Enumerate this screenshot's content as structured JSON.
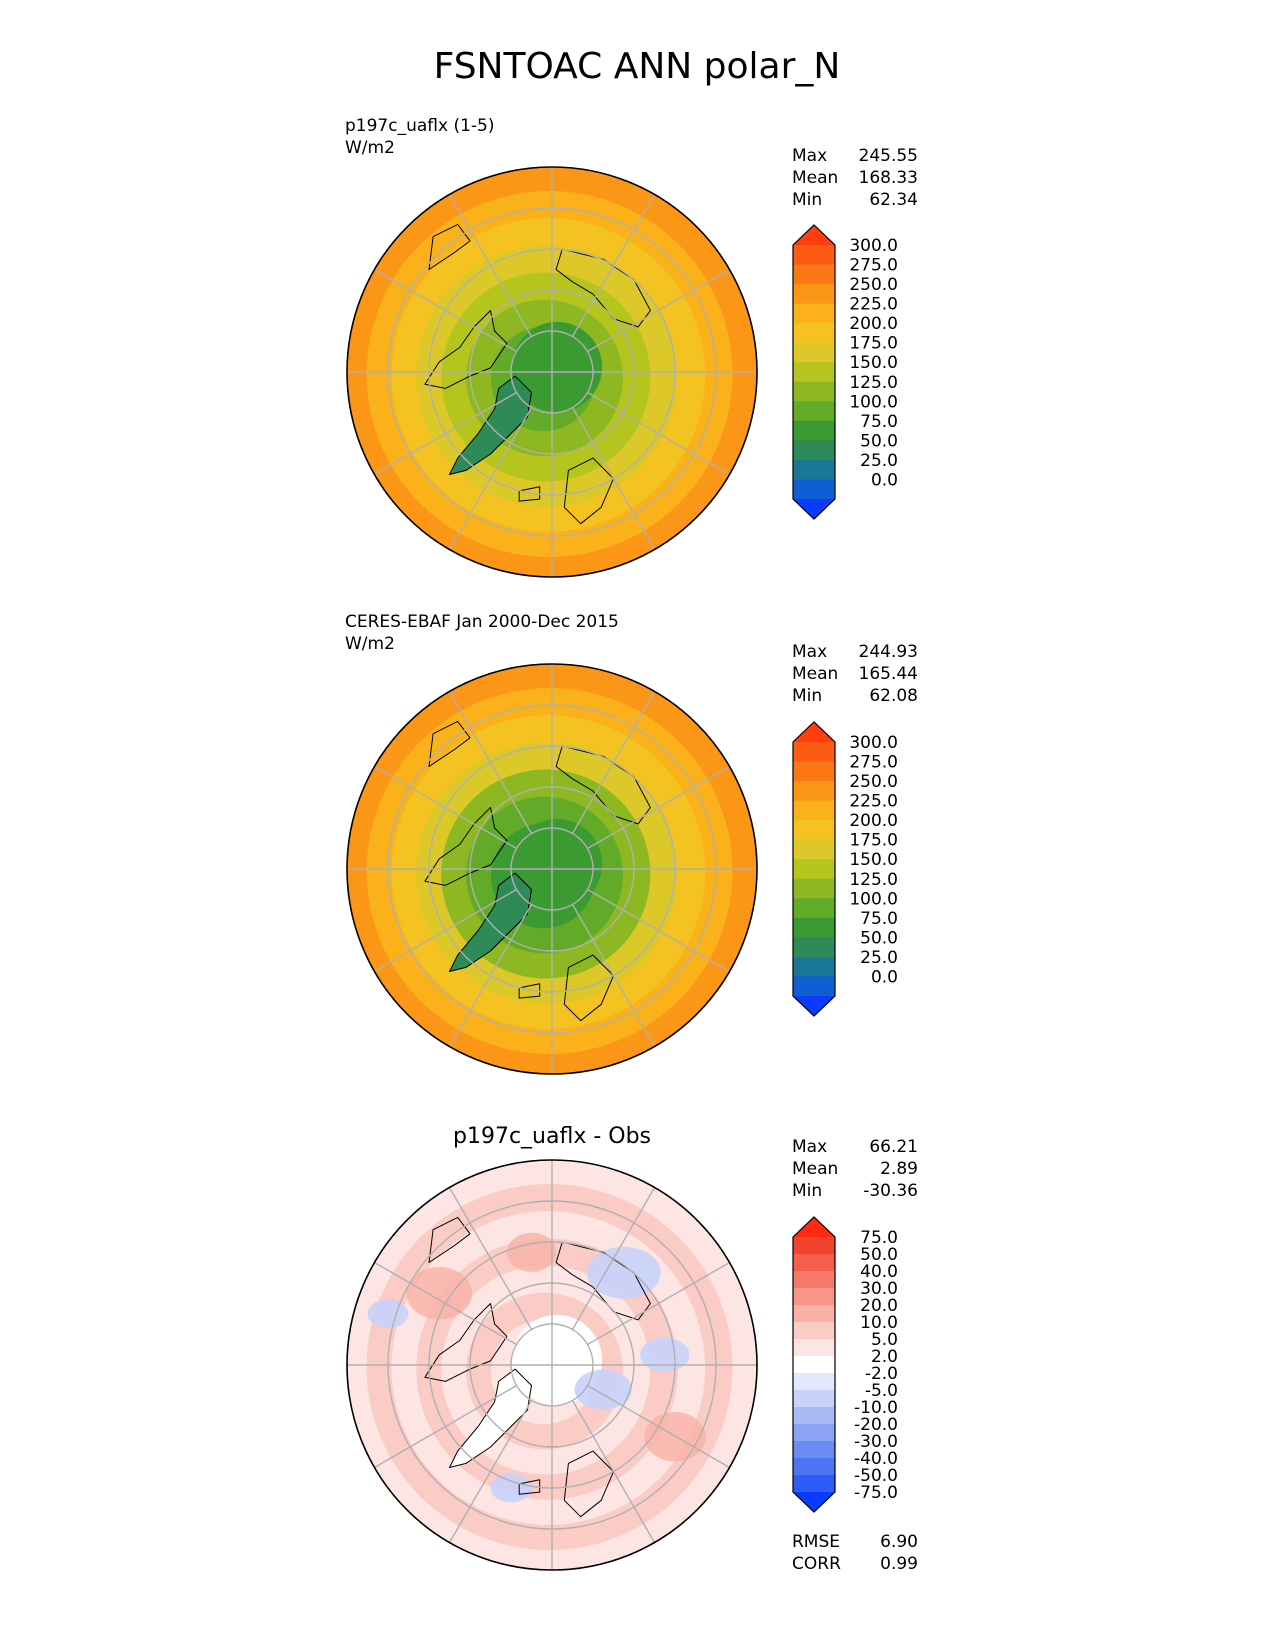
{
  "title": "FSNTOAC ANN polar_N",
  "panels": [
    {
      "label_lines": [
        "p197c_uaflx (1-5)",
        "W/m2"
      ],
      "centered_title": "",
      "stats": [
        {
          "name": "Max",
          "value": "245.55"
        },
        {
          "name": "Mean",
          "value": "168.33"
        },
        {
          "name": "Min",
          "value": "62.34"
        }
      ],
      "extra_stats": [],
      "colorbar": {
        "colors": [
          "#0a3cff",
          "#0f5fd2",
          "#1a7896",
          "#2e8b57",
          "#3c9a32",
          "#62ab28",
          "#8db822",
          "#b6c41e",
          "#dcc828",
          "#f4c221",
          "#fbb21a",
          "#fb9616",
          "#fb7814",
          "#fb5b12",
          "#ff3d10"
        ],
        "labels": [
          "300.0",
          "275.0",
          "250.0",
          "225.0",
          "200.0",
          "175.0",
          "150.0",
          "125.0",
          "100.0",
          "75.0",
          "50.0",
          "25.0",
          "0.0"
        ]
      },
      "map": {
        "pole_color": "#3c9a32",
        "ring_colors": [
          "#3c9a32",
          "#62ab28",
          "#8db822",
          "#b6c41e",
          "#dcc828",
          "#f4c221",
          "#fbb21a",
          "#fb9616"
        ],
        "greenland_color": "#2e8b57"
      }
    },
    {
      "label_lines": [
        "CERES-EBAF Jan 2000-Dec 2015",
        "W/m2"
      ],
      "centered_title": "",
      "stats": [
        {
          "name": "Max",
          "value": "244.93"
        },
        {
          "name": "Mean",
          "value": "165.44"
        },
        {
          "name": "Min",
          "value": "62.08"
        }
      ],
      "extra_stats": [],
      "colorbar": {
        "colors": [
          "#0a3cff",
          "#0f5fd2",
          "#1a7896",
          "#2e8b57",
          "#3c9a32",
          "#62ab28",
          "#8db822",
          "#b6c41e",
          "#dcc828",
          "#f4c221",
          "#fbb21a",
          "#fb9616",
          "#fb7814",
          "#fb5b12",
          "#ff3d10"
        ],
        "labels": [
          "300.0",
          "275.0",
          "250.0",
          "225.0",
          "200.0",
          "175.0",
          "150.0",
          "125.0",
          "100.0",
          "75.0",
          "50.0",
          "25.0",
          "0.0"
        ]
      },
      "map": {
        "pole_color": "#3c9a32",
        "ring_colors": [
          "#3c9a32",
          "#3c9a32",
          "#62ab28",
          "#8db822",
          "#dcc828",
          "#f4c221",
          "#fbb21a",
          "#fb9616"
        ],
        "greenland_color": "#2e8b57"
      }
    },
    {
      "label_lines": [],
      "centered_title": "p197c_uaflx - Obs",
      "stats": [
        {
          "name": "Max",
          "value": "66.21"
        },
        {
          "name": "Mean",
          "value": "2.89"
        },
        {
          "name": "Min",
          "value": "-30.36"
        }
      ],
      "extra_stats": [
        {
          "name": "RMSE",
          "value": "6.90"
        },
        {
          "name": "CORR",
          "value": "0.99"
        }
      ],
      "colorbar": {
        "colors": [
          "#0a3cff",
          "#2e5cf5",
          "#4d74f3",
          "#6b8cf2",
          "#8aa3f4",
          "#a9baf6",
          "#c7d2f9",
          "#e3e9fc",
          "#ffffff",
          "#fde5e3",
          "#fbcbc5",
          "#f9b0a6",
          "#f79588",
          "#f57a6a",
          "#f35f4c",
          "#f1442e",
          "#ff2a10"
        ],
        "labels": [
          "75.0",
          "50.0",
          "40.0",
          "30.0",
          "20.0",
          "10.0",
          "5.0",
          "2.0",
          "-2.0",
          "-5.0",
          "-10.0",
          "-20.0",
          "-30.0",
          "-40.0",
          "-50.0",
          "-75.0"
        ]
      },
      "map": {
        "pole_color": "#ffffff",
        "ring_colors": [
          "#ffffff",
          "#fde5e3",
          "#fbcbc5",
          "#fde5e3",
          "#fbcbc5",
          "#fde5e3",
          "#fbcbc5",
          "#fde5e3"
        ],
        "greenland_color": "#ffffff"
      }
    }
  ],
  "chart_data": [
    {
      "type": "heatmap",
      "title": "p197c_uaflx (1-5)",
      "units": "W/m2",
      "projection": "north polar stereographic",
      "stats": {
        "max": 245.55,
        "mean": 168.33,
        "min": 62.34
      },
      "colorbar_levels": [
        0,
        25,
        50,
        75,
        100,
        125,
        150,
        175,
        200,
        225,
        250,
        275,
        300
      ]
    },
    {
      "type": "heatmap",
      "title": "CERES-EBAF Jan 2000-Dec 2015",
      "units": "W/m2",
      "projection": "north polar stereographic",
      "stats": {
        "max": 244.93,
        "mean": 165.44,
        "min": 62.08
      },
      "colorbar_levels": [
        0,
        25,
        50,
        75,
        100,
        125,
        150,
        175,
        200,
        225,
        250,
        275,
        300
      ]
    },
    {
      "type": "heatmap",
      "title": "p197c_uaflx - Obs",
      "projection": "north polar stereographic",
      "stats": {
        "max": 66.21,
        "mean": 2.89,
        "min": -30.36,
        "rmse": 6.9,
        "corr": 0.99
      },
      "colorbar_levels": [
        -75,
        -50,
        -40,
        -30,
        -20,
        -10,
        -5,
        -2,
        2,
        5,
        10,
        20,
        30,
        40,
        50,
        75
      ]
    }
  ]
}
